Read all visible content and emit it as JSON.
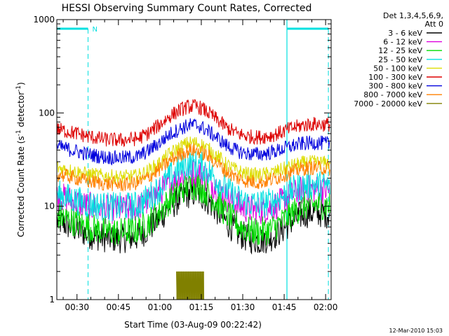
{
  "chart_data": {
    "type": "line",
    "title": "HESSI Observing Summary Count Rates, Corrected",
    "xlabel": "Start Time (03-Aug-09 00:22:42)",
    "ylabel_main": "Corrected Count Rate (s",
    "ylabel_sup1": "-1",
    "ylabel_mid": " detector",
    "ylabel_sup2": "-1",
    "ylabel_end": ")",
    "y_scale": "log",
    "ylim": [
      1,
      1000
    ],
    "xlim_minutes": [
      22.7,
      122
    ],
    "x_ticks": [
      {
        "minute": 30,
        "label": "00:30"
      },
      {
        "minute": 45,
        "label": "00:45"
      },
      {
        "minute": 60,
        "label": "01:00"
      },
      {
        "minute": 75,
        "label": "01:15"
      },
      {
        "minute": 90,
        "label": "01:30"
      },
      {
        "minute": 105,
        "label": "01:45"
      },
      {
        "minute": 120,
        "label": "02:00"
      }
    ],
    "y_ticks": [
      {
        "value": 1,
        "label": "1"
      },
      {
        "value": 10,
        "label": "10"
      },
      {
        "value": 100,
        "label": "100"
      },
      {
        "value": 1000,
        "label": "1000"
      }
    ],
    "legend_header": [
      "Det 1,3,4,5,6,9,",
      "Att 0"
    ],
    "legend_position": "top-right, outside plot",
    "night_bars": [
      {
        "start_minute": 22.7,
        "end_minute": 34,
        "label": "N"
      },
      {
        "start_minute": 106,
        "end_minute": 121,
        "label": ""
      }
    ],
    "series": [
      {
        "name": "3 - 6 keV",
        "color": "#000000",
        "x": [
          22.7,
          28,
          34,
          40,
          46,
          52,
          56,
          60,
          64,
          68,
          70,
          72,
          74,
          76,
          80,
          84,
          88,
          92,
          96,
          100,
          104,
          108,
          112,
          116,
          121
        ],
        "y": [
          7,
          6,
          5,
          4.6,
          4.5,
          4.7,
          5.8,
          7.5,
          10,
          12.5,
          13.5,
          13.8,
          13.5,
          12.5,
          9.5,
          6.8,
          5.2,
          4.5,
          4.3,
          4.6,
          5.5,
          7,
          8.3,
          8.6,
          8.3
        ]
      },
      {
        "name": "6 - 12 keV",
        "color": "#dd00dd",
        "x": [
          22.7,
          28,
          34,
          40,
          46,
          52,
          56,
          60,
          64,
          68,
          70,
          72,
          74,
          76,
          80,
          84,
          88,
          92,
          96,
          100,
          104,
          108,
          112,
          116,
          121
        ],
        "y": [
          13,
          11.5,
          10,
          9.3,
          9.2,
          9.6,
          11.5,
          14,
          18,
          21.5,
          22.5,
          23,
          22.5,
          21,
          16.5,
          12.5,
          10.3,
          9.3,
          9,
          9.6,
          11,
          13.2,
          15,
          15.3,
          14.8
        ]
      },
      {
        "name": "12 - 25 keV",
        "color": "#00dd00",
        "x": [
          22.7,
          28,
          34,
          40,
          46,
          52,
          56,
          60,
          64,
          68,
          70,
          72,
          74,
          76,
          80,
          84,
          88,
          92,
          96,
          100,
          104,
          108,
          112,
          116,
          121
        ],
        "y": [
          8,
          7,
          6,
          5.4,
          5.3,
          5.6,
          6.8,
          8.7,
          12,
          15,
          16.3,
          16.8,
          16.3,
          15,
          11.5,
          8.3,
          6.4,
          5.5,
          5.3,
          5.6,
          6.7,
          8.5,
          10,
          10.5,
          10.2
        ]
      },
      {
        "name": "25 - 50 keV",
        "color": "#00e0e0",
        "x": [
          22.7,
          28,
          34,
          40,
          46,
          52,
          56,
          60,
          64,
          68,
          70,
          72,
          74,
          76,
          80,
          84,
          88,
          92,
          96,
          100,
          104,
          108,
          112,
          116,
          121
        ],
        "y": [
          13.5,
          12,
          10.5,
          10,
          9.8,
          10.2,
          12.5,
          15.5,
          21,
          26,
          28,
          28.5,
          28,
          26,
          20,
          15,
          12,
          10.8,
          10.5,
          11,
          12.5,
          14.8,
          16.5,
          17,
          16.5
        ]
      },
      {
        "name": "50 - 100 keV",
        "color": "#dddd00",
        "x": [
          22.7,
          28,
          34,
          40,
          46,
          52,
          56,
          60,
          64,
          68,
          70,
          72,
          74,
          76,
          80,
          84,
          88,
          92,
          96,
          100,
          104,
          108,
          112,
          116,
          121
        ],
        "y": [
          26,
          24,
          22,
          21,
          20.5,
          21,
          24,
          29,
          37,
          44,
          47,
          48,
          47,
          44,
          36,
          28,
          24,
          22,
          21.5,
          22.5,
          24.5,
          27,
          29,
          29.5,
          29
        ]
      },
      {
        "name": "100 - 300 keV",
        "color": "#dd0000",
        "x": [
          22.7,
          28,
          34,
          40,
          46,
          52,
          56,
          60,
          64,
          68,
          70,
          72,
          74,
          76,
          80,
          84,
          88,
          92,
          96,
          100,
          104,
          108,
          112,
          116,
          121
        ],
        "y": [
          67,
          62,
          56,
          52,
          51,
          53,
          61,
          75,
          94,
          110,
          116,
          118,
          116,
          108,
          88,
          70,
          60,
          56,
          55,
          57,
          62,
          69,
          74,
          76,
          75
        ]
      },
      {
        "name": "300 - 800 keV",
        "color": "#0000dd",
        "x": [
          22.7,
          28,
          34,
          40,
          46,
          52,
          56,
          60,
          64,
          68,
          70,
          72,
          74,
          76,
          80,
          84,
          88,
          92,
          96,
          100,
          104,
          108,
          112,
          116,
          121
        ],
        "y": [
          44,
          40,
          36,
          33.5,
          33,
          34,
          39.5,
          48,
          60,
          69,
          73,
          74.5,
          73,
          68,
          56,
          45,
          39,
          36.5,
          36,
          37.5,
          40.5,
          44.5,
          47,
          48,
          47
        ]
      },
      {
        "name": "800 - 7000 keV",
        "color": "#ff8000",
        "x": [
          22.7,
          28,
          34,
          40,
          46,
          52,
          56,
          60,
          64,
          68,
          70,
          72,
          74,
          76,
          80,
          84,
          88,
          92,
          96,
          100,
          104,
          108,
          112,
          116,
          121
        ],
        "y": [
          22,
          20.5,
          18.5,
          17.5,
          17,
          17.8,
          20.5,
          25,
          31,
          37,
          39,
          40,
          39,
          36.5,
          30,
          23.5,
          20,
          18.5,
          18,
          19,
          21,
          23.5,
          25.5,
          26,
          25.5
        ]
      },
      {
        "name": "7000 - 20000 keV",
        "color": "#808000",
        "x": [
          66,
          67,
          67.8,
          68.5,
          69.2,
          70,
          70.8,
          71.6,
          72.4,
          73.2,
          74,
          74.8,
          75.5,
          76
        ],
        "y": [
          2,
          1,
          2,
          1,
          2,
          1,
          2,
          1,
          2,
          1,
          2,
          1,
          2,
          1
        ]
      }
    ]
  },
  "footer": {
    "date_stamp": "12-Mar-2010 15:03"
  }
}
